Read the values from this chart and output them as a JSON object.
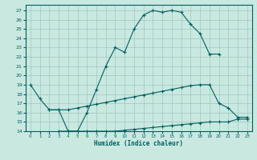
{
  "xlabel": "Humidex (Indice chaleur)",
  "bg_color": "#c8e8e0",
  "grid_color": "#a0c8c0",
  "line_color": "#006060",
  "xlim": [
    -0.5,
    23.5
  ],
  "ylim": [
    14,
    27.6
  ],
  "yticks": [
    14,
    15,
    16,
    17,
    18,
    19,
    20,
    21,
    22,
    23,
    24,
    25,
    26,
    27
  ],
  "xticks": [
    0,
    1,
    2,
    3,
    4,
    5,
    6,
    7,
    8,
    9,
    10,
    11,
    12,
    13,
    14,
    15,
    16,
    17,
    18,
    19,
    20,
    21,
    22,
    23
  ],
  "curve1_x": [
    0,
    1,
    2,
    3,
    4,
    5,
    6,
    7,
    8,
    9,
    10,
    11,
    12,
    13,
    14,
    15,
    16,
    17,
    18,
    19,
    20
  ],
  "curve1_y": [
    19.0,
    17.5,
    16.3,
    16.3,
    14.0,
    14.0,
    16.0,
    18.5,
    21.0,
    23.0,
    22.5,
    25.0,
    26.5,
    27.0,
    26.8,
    27.0,
    26.8,
    25.5,
    24.5,
    22.3,
    22.3
  ],
  "curve2_x": [
    2,
    3,
    4,
    5,
    6,
    7,
    8,
    9,
    10,
    11,
    12,
    13,
    14,
    15,
    16,
    17,
    18,
    19,
    20,
    21,
    22,
    23
  ],
  "curve2_y": [
    16.3,
    16.3,
    16.3,
    16.5,
    16.7,
    16.9,
    17.1,
    17.3,
    17.5,
    17.7,
    17.9,
    18.1,
    18.3,
    18.5,
    18.7,
    18.9,
    19.0,
    19.0,
    17.0,
    16.5,
    15.5,
    15.5
  ],
  "curve3_x": [
    3,
    4,
    5,
    6,
    7,
    8,
    9,
    10,
    11,
    12,
    13,
    14,
    15,
    16,
    17,
    18,
    19,
    20,
    21,
    22,
    23
  ],
  "curve3_y": [
    14.0,
    14.0,
    14.0,
    14.0,
    14.0,
    14.0,
    14.0,
    14.1,
    14.2,
    14.3,
    14.4,
    14.5,
    14.6,
    14.7,
    14.8,
    14.9,
    15.0,
    15.0,
    15.0,
    15.3,
    15.3
  ]
}
